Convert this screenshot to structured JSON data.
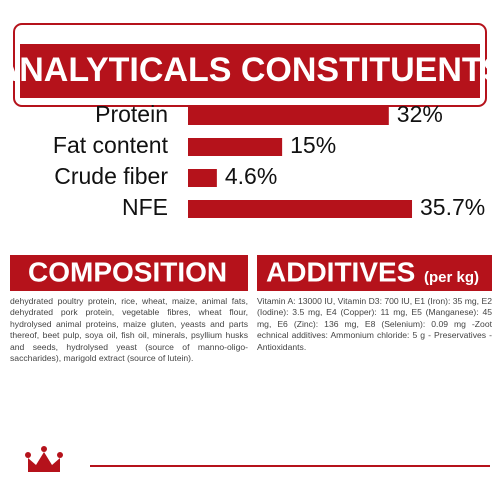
{
  "analytics": {
    "type": "bar",
    "title": "ANALYTICALS CONSTITUENTS",
    "categories": [
      "Protein",
      "Fat content",
      "Crude fiber",
      "NFE"
    ],
    "values": [
      32,
      15,
      4.6,
      35.7
    ],
    "value_labels": [
      "32%",
      "15%",
      "4.6%",
      "35.7%"
    ],
    "xlim": [
      0,
      40
    ],
    "color": "#b5121b"
  },
  "composition": {
    "title": "COMPOSITION",
    "text": "dehydrated poultry protein, rice, wheat, maize, animal fats, dehydrated pork protein, vegetable fibres, wheat flour, hydrolysed animal proteins, maize gluten, yeasts and parts thereof, beet pulp, soya oil, fish oil, minerals, psyllium husks and seeds, hydrolysed yeast (source of manno-oligo-saccharides), marigold extract (source of lutein)."
  },
  "additives": {
    "title": "ADDITIVES",
    "subtitle": "(per kg)",
    "text": "Vitamin A: 13000 IU, Vitamin D3: 700 IU, E1 (Iron): 35 mg, E2 (Iodine): 3.5 mg, E4 (Copper): 11 mg, E5 (Manganese): 45 mg, E6 (Zinc): 136 mg, E8 (Selenium): 0.09 mg -Zoot echnical additives: Ammonium chloride: 5 g - Preservatives - Antioxidants."
  }
}
